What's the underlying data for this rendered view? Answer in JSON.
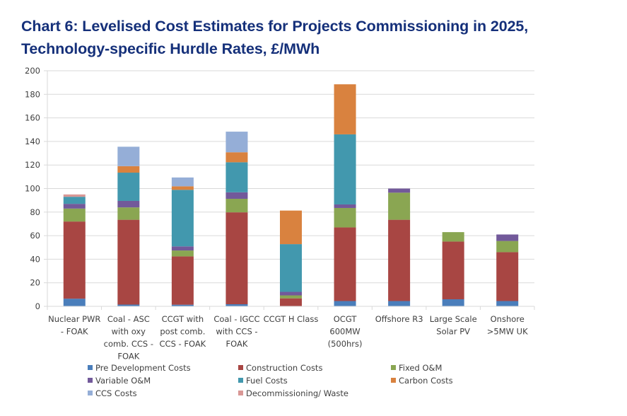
{
  "title": {
    "line1": "Chart 6: Levelised Cost Estimates for Projects Commissioning in 2025,",
    "line2": "Technology-specific Hurdle Rates, £/MWh"
  },
  "chart_data": {
    "type": "bar",
    "stacked": true,
    "title": "Chart 6: Levelised Cost Estimates for Projects Commissioning in 2025, Technology-specific Hurdle Rates, £/MWh",
    "xlabel": "",
    "ylabel": "£/MWh",
    "ylim": [
      0,
      200
    ],
    "yticks": [
      0,
      20,
      40,
      60,
      80,
      100,
      120,
      140,
      160,
      180,
      200
    ],
    "grid": true,
    "legend_position": "bottom",
    "categories": [
      [
        "Nuclear PWR",
        "- FOAK"
      ],
      [
        "Coal - ASC",
        "with oxy",
        "comb. CCS -",
        "FOAK"
      ],
      [
        "CCGT with",
        "post comb.",
        "CCS - FOAK"
      ],
      [
        "Coal - IGCC",
        "with CCS -",
        "FOAK"
      ],
      [
        "CCGT H Class"
      ],
      [
        "OCGT",
        "600MW",
        "(500hrs)"
      ],
      [
        "Offshore R3"
      ],
      [
        "Large Scale",
        "Solar PV"
      ],
      [
        "Onshore",
        ">5MW UK"
      ]
    ],
    "series": [
      {
        "name": "Pre Development Costs",
        "color": "#4a7ebb",
        "values": [
          6.5,
          1.5,
          1.4,
          1.8,
          0.3,
          4.5,
          4.5,
          6,
          4.5
        ]
      },
      {
        "name": "Construction Costs",
        "color": "#a84643",
        "values": [
          65.5,
          72,
          41,
          78,
          6.5,
          62.5,
          69,
          49,
          41.5
        ]
      },
      {
        "name": "Fixed O&M",
        "color": "#8aa652",
        "values": [
          11,
          10.5,
          5,
          11.5,
          2.5,
          16.5,
          23,
          8,
          9.5
        ]
      },
      {
        "name": "Variable O&M",
        "color": "#72599a",
        "values": [
          4,
          5.5,
          3.5,
          5.5,
          3,
          3,
          3.5,
          0,
          5.5
        ]
      },
      {
        "name": "Fuel Costs",
        "color": "#4298ae",
        "values": [
          6,
          24,
          48,
          25.5,
          40.5,
          59.5,
          0,
          0,
          0
        ]
      },
      {
        "name": "Carbon Costs",
        "color": "#d9823f",
        "values": [
          0,
          5.5,
          3,
          8.5,
          28.5,
          42.5,
          0,
          0,
          0
        ]
      },
      {
        "name": "CCS Costs",
        "color": "#95aed7",
        "values": [
          0,
          16.5,
          7.5,
          17.5,
          0,
          0,
          0,
          0,
          0
        ]
      },
      {
        "name": "Decommissioning/ Waste",
        "color": "#d99795",
        "values": [
          2,
          0,
          0,
          0,
          0,
          0,
          0,
          0,
          0
        ]
      }
    ]
  },
  "legend": {
    "items": [
      {
        "label": "Pre Development Costs",
        "color": "#4a7ebb"
      },
      {
        "label": "Construction Costs",
        "color": "#a84643"
      },
      {
        "label": "Fixed O&M",
        "color": "#8aa652"
      },
      {
        "label": "Variable O&M",
        "color": "#72599a"
      },
      {
        "label": "Fuel Costs",
        "color": "#4298ae"
      },
      {
        "label": "Carbon Costs",
        "color": "#d9823f"
      },
      {
        "label": "CCS Costs",
        "color": "#95aed7"
      },
      {
        "label": "Decommissioning/ Waste",
        "color": "#d99795"
      }
    ]
  }
}
